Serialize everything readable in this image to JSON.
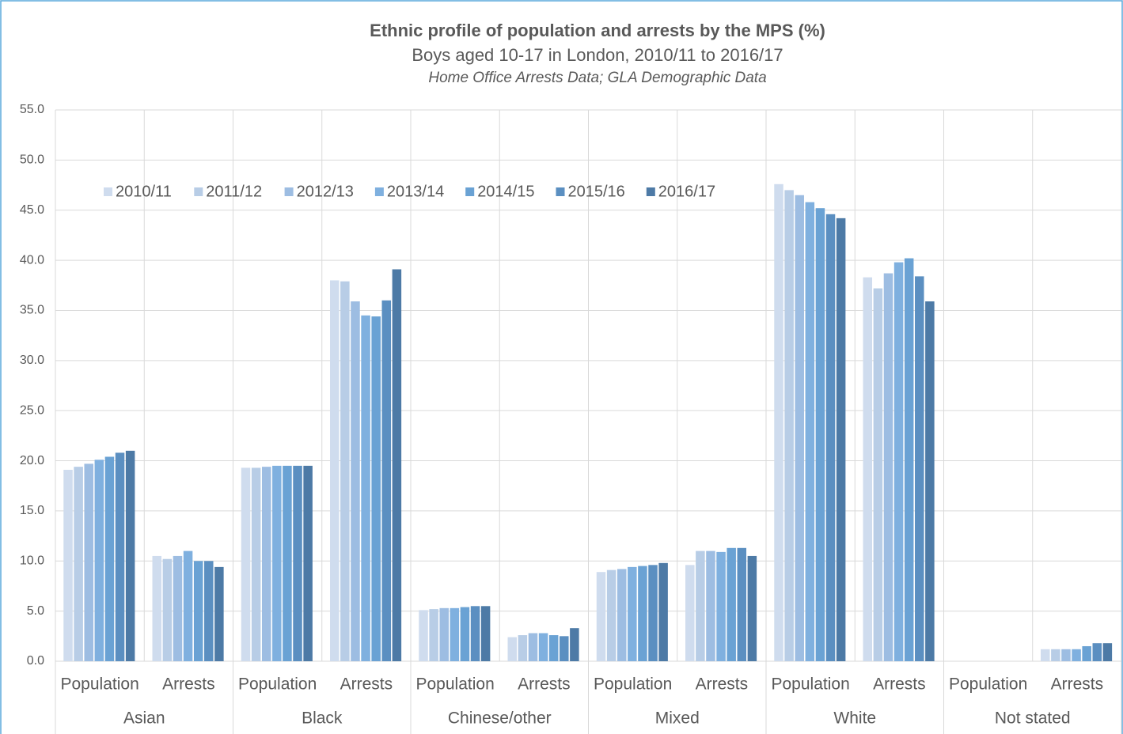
{
  "chart_data": {
    "type": "bar",
    "title": "Ethnic profile of population and arrests by the MPS (%)",
    "subtitle": "Boys aged 10-17 in London, 2010/11 to 2016/17",
    "source": "Home Office Arrests Data; GLA Demographic Data",
    "categories": [
      "Population",
      "Arrests",
      "Population",
      "Arrests",
      "Population",
      "Arrests",
      "Population",
      "Arrests",
      "Population",
      "Arrests",
      "Population",
      "Arrests"
    ],
    "category_groups": [
      "Asian",
      "Black",
      "Chinese/other",
      "Mixed",
      "White",
      "Not stated"
    ],
    "series": [
      {
        "name": "2010/11",
        "color": "#cfdcee",
        "values": [
          19.1,
          10.5,
          19.3,
          38.0,
          5.1,
          2.4,
          8.9,
          9.6,
          47.6,
          38.3,
          0,
          1.2
        ]
      },
      {
        "name": "2011/12",
        "color": "#b8cde6",
        "values": [
          19.4,
          10.2,
          19.3,
          37.9,
          5.2,
          2.6,
          9.1,
          11.0,
          47.0,
          37.2,
          0,
          1.2
        ]
      },
      {
        "name": "2012/13",
        "color": "#9dbde2",
        "values": [
          19.7,
          10.5,
          19.4,
          35.9,
          5.3,
          2.8,
          9.2,
          11.0,
          46.5,
          38.7,
          0,
          1.2
        ]
      },
      {
        "name": "2013/14",
        "color": "#7fb0df",
        "values": [
          20.1,
          11.0,
          19.5,
          34.5,
          5.3,
          2.8,
          9.4,
          10.9,
          45.8,
          39.8,
          0,
          1.2
        ]
      },
      {
        "name": "2014/15",
        "color": "#6aa2d4",
        "values": [
          20.4,
          10.0,
          19.5,
          34.4,
          5.4,
          2.6,
          9.5,
          11.3,
          45.2,
          40.2,
          0,
          1.5
        ]
      },
      {
        "name": "2015/16",
        "color": "#5b8fc1",
        "values": [
          20.8,
          10.0,
          19.5,
          36.0,
          5.5,
          2.5,
          9.6,
          11.3,
          44.6,
          38.4,
          0,
          1.8
        ]
      },
      {
        "name": "2016/17",
        "color": "#4d7aa6",
        "values": [
          21.0,
          9.4,
          19.5,
          39.1,
          5.5,
          3.3,
          9.8,
          10.5,
          44.2,
          35.9,
          0,
          1.8
        ]
      }
    ],
    "ylim": [
      0,
      55
    ],
    "yticks": [
      {
        "value": 0,
        "label": "0.0"
      },
      {
        "value": 5,
        "label": "5.0"
      },
      {
        "value": 10,
        "label": "10.0"
      },
      {
        "value": 15,
        "label": "15.0"
      },
      {
        "value": 20,
        "label": "20.0"
      },
      {
        "value": 25,
        "label": "25.0"
      },
      {
        "value": 30,
        "label": "30.0"
      },
      {
        "value": 35,
        "label": "35.0"
      },
      {
        "value": 40,
        "label": "40.0"
      },
      {
        "value": 45,
        "label": "45.0"
      },
      {
        "value": 50,
        "label": "50.0"
      },
      {
        "value": 55,
        "label": "55.0"
      }
    ],
    "grid": true,
    "legend": "top-left"
  }
}
